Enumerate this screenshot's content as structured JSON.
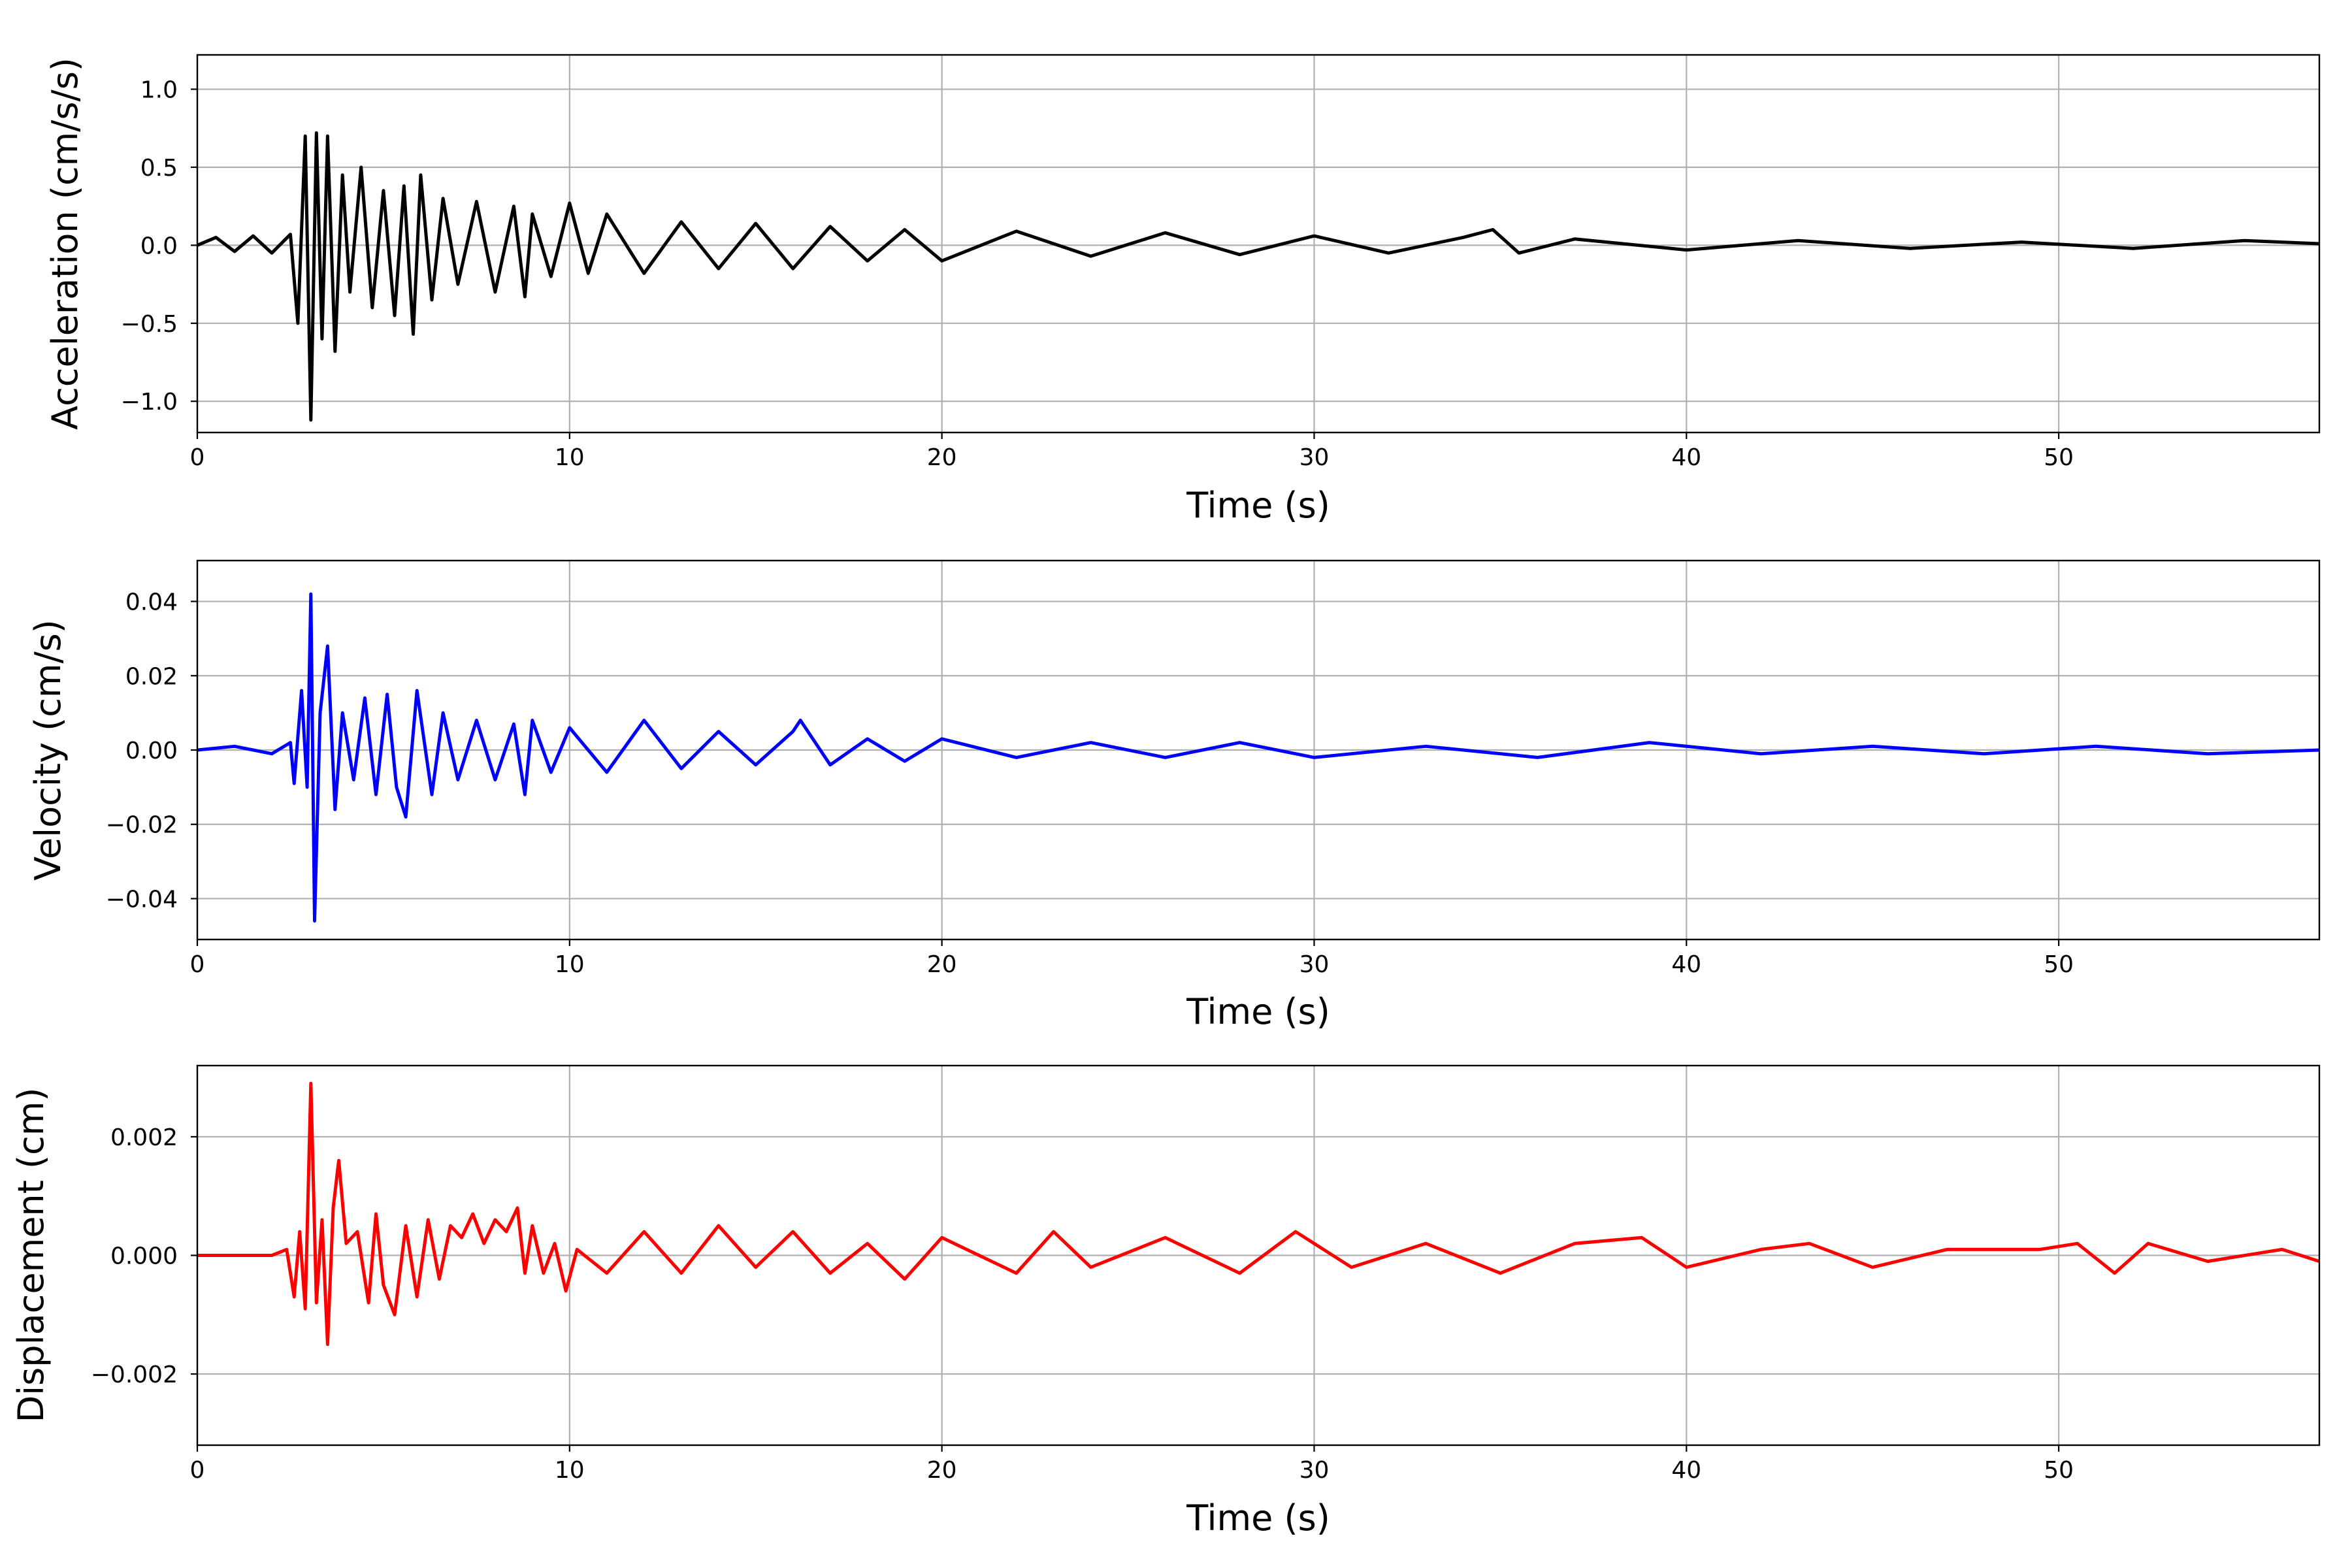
{
  "chart_data": [
    {
      "type": "line",
      "xlabel": "Time (s)",
      "ylabel": "Acceleration (cm/s/s)",
      "xlim": [
        0,
        57
      ],
      "ylim": [
        -1.2,
        1.22
      ],
      "xticks": [
        0,
        10,
        20,
        30,
        40,
        50
      ],
      "xtick_labels": [
        "0",
        "10",
        "20",
        "30",
        "40",
        "50"
      ],
      "yticks": [
        1.0,
        0.5,
        0.0,
        -0.5,
        -1.0
      ],
      "ytick_labels": [
        "1.0",
        "0.5",
        "0.0",
        "−0.5",
        "−1.0"
      ],
      "grid": true,
      "series": [
        {
          "color": "#000000",
          "x": [
            0.0,
            0.5,
            1.0,
            1.5,
            2.0,
            2.5,
            2.7,
            2.9,
            3.05,
            3.2,
            3.35,
            3.5,
            3.7,
            3.9,
            4.1,
            4.4,
            4.7,
            5.0,
            5.3,
            5.55,
            5.8,
            6.0,
            6.3,
            6.6,
            7.0,
            7.5,
            8.0,
            8.5,
            8.8,
            9.0,
            9.5,
            10.0,
            10.5,
            11.0,
            12.0,
            13.0,
            14.0,
            15.0,
            16.0,
            17.0,
            18.0,
            19.0,
            20.0,
            22.0,
            24.0,
            26.0,
            28.0,
            30.0,
            32.0,
            34.0,
            34.8,
            35.5,
            37.0,
            40.0,
            43.0,
            46.0,
            49.0,
            52.0,
            55.0,
            57.0
          ],
          "y": [
            0.0,
            0.05,
            -0.04,
            0.06,
            -0.05,
            0.07,
            -0.5,
            0.7,
            -1.12,
            0.72,
            -0.6,
            0.7,
            -0.68,
            0.45,
            -0.3,
            0.5,
            -0.4,
            0.35,
            -0.45,
            0.38,
            -0.57,
            0.45,
            -0.35,
            0.3,
            -0.25,
            0.28,
            -0.3,
            0.25,
            -0.33,
            0.2,
            -0.2,
            0.27,
            -0.18,
            0.2,
            -0.18,
            0.15,
            -0.15,
            0.14,
            -0.15,
            0.12,
            -0.1,
            0.1,
            -0.1,
            0.09,
            -0.07,
            0.08,
            -0.06,
            0.06,
            -0.05,
            0.05,
            0.1,
            -0.05,
            0.04,
            -0.03,
            0.03,
            -0.02,
            0.02,
            -0.02,
            0.03,
            0.01
          ]
        }
      ]
    },
    {
      "type": "line",
      "xlabel": "Time (s)",
      "ylabel": "Velocity (cm/s)",
      "xlim": [
        0,
        57
      ],
      "ylim": [
        -0.051,
        0.051
      ],
      "xticks": [
        0,
        10,
        20,
        30,
        40,
        50
      ],
      "xtick_labels": [
        "0",
        "10",
        "20",
        "30",
        "40",
        "50"
      ],
      "yticks": [
        0.04,
        0.02,
        0.0,
        -0.02,
        -0.04
      ],
      "ytick_labels": [
        "0.04",
        "0.02",
        "0.00",
        "−0.02",
        "−0.04"
      ],
      "grid": true,
      "series": [
        {
          "color": "#0000ff",
          "x": [
            0.0,
            1.0,
            2.0,
            2.5,
            2.6,
            2.8,
            2.95,
            3.05,
            3.15,
            3.3,
            3.5,
            3.7,
            3.9,
            4.2,
            4.5,
            4.8,
            5.1,
            5.35,
            5.6,
            5.9,
            6.3,
            6.6,
            7.0,
            7.5,
            8.0,
            8.5,
            8.8,
            9.0,
            9.5,
            10.0,
            11.0,
            12.0,
            13.0,
            14.0,
            15.0,
            16.0,
            16.2,
            17.0,
            18.0,
            19.0,
            20.0,
            22.0,
            24.0,
            26.0,
            28.0,
            30.0,
            33.0,
            36.0,
            39.0,
            42.0,
            45.0,
            48.0,
            51.0,
            54.0,
            57.0
          ],
          "y": [
            0.0,
            0.001,
            -0.001,
            0.002,
            -0.009,
            0.016,
            -0.01,
            0.042,
            -0.046,
            0.01,
            0.028,
            -0.016,
            0.01,
            -0.008,
            0.014,
            -0.012,
            0.015,
            -0.01,
            -0.018,
            0.016,
            -0.012,
            0.01,
            -0.008,
            0.008,
            -0.008,
            0.007,
            -0.012,
            0.008,
            -0.006,
            0.006,
            -0.006,
            0.008,
            -0.005,
            0.005,
            -0.004,
            0.005,
            0.008,
            -0.004,
            0.003,
            -0.003,
            0.003,
            -0.002,
            0.002,
            -0.002,
            0.002,
            -0.002,
            0.001,
            -0.002,
            0.002,
            -0.001,
            0.001,
            -0.001,
            0.001,
            -0.001,
            0.0
          ]
        }
      ]
    },
    {
      "type": "line",
      "xlabel": "Time (s)",
      "ylabel": "Displacement (cm)",
      "xlim": [
        0,
        57
      ],
      "ylim": [
        -0.0032,
        0.0032
      ],
      "xticks": [
        0,
        10,
        20,
        30,
        40,
        50
      ],
      "xtick_labels": [
        "0",
        "10",
        "20",
        "30",
        "40",
        "50"
      ],
      "yticks": [
        0.002,
        0.0,
        -0.002
      ],
      "ytick_labels": [
        "0.002",
        "0.000",
        "−0.002"
      ],
      "grid": true,
      "series": [
        {
          "color": "#ff0000",
          "x": [
            0.0,
            1.0,
            2.0,
            2.4,
            2.6,
            2.75,
            2.9,
            3.05,
            3.2,
            3.35,
            3.5,
            3.65,
            3.8,
            4.0,
            4.3,
            4.6,
            4.8,
            5.0,
            5.3,
            5.6,
            5.9,
            6.2,
            6.5,
            6.8,
            7.1,
            7.4,
            7.7,
            8.0,
            8.3,
            8.6,
            8.8,
            9.0,
            9.3,
            9.6,
            9.9,
            10.2,
            11.0,
            12.0,
            13.0,
            14.0,
            15.0,
            16.0,
            17.0,
            18.0,
            19.0,
            20.0,
            22.0,
            23.0,
            24.0,
            26.0,
            28.0,
            29.5,
            31.0,
            33.0,
            35.0,
            37.0,
            38.8,
            40.0,
            42.0,
            43.3,
            45.0,
            47.0,
            49.5,
            50.5,
            51.5,
            52.4,
            54.0,
            56.0,
            57.0
          ],
          "y": [
            0.0,
            0.0,
            0.0,
            0.0001,
            -0.0007,
            0.0004,
            -0.0009,
            0.0029,
            -0.0008,
            0.0006,
            -0.0015,
            0.0008,
            0.0016,
            0.0002,
            0.0004,
            -0.0008,
            0.0007,
            -0.0005,
            -0.001,
            0.0005,
            -0.0007,
            0.0006,
            -0.0004,
            0.0005,
            0.0003,
            0.0007,
            0.0002,
            0.0006,
            0.0004,
            0.0008,
            -0.0003,
            0.0005,
            -0.0003,
            0.0002,
            -0.0006,
            0.0001,
            -0.0003,
            0.0004,
            -0.0003,
            0.0005,
            -0.0002,
            0.0004,
            -0.0003,
            0.0002,
            -0.0004,
            0.0003,
            -0.0003,
            0.0004,
            -0.0002,
            0.0003,
            -0.0003,
            0.0004,
            -0.0002,
            0.0002,
            -0.0003,
            0.0002,
            0.0003,
            -0.0002,
            0.0001,
            0.0002,
            -0.0002,
            0.0001,
            0.0001,
            0.0002,
            -0.0003,
            0.0002,
            -0.0001,
            0.0001,
            -0.0001
          ]
        }
      ]
    }
  ]
}
